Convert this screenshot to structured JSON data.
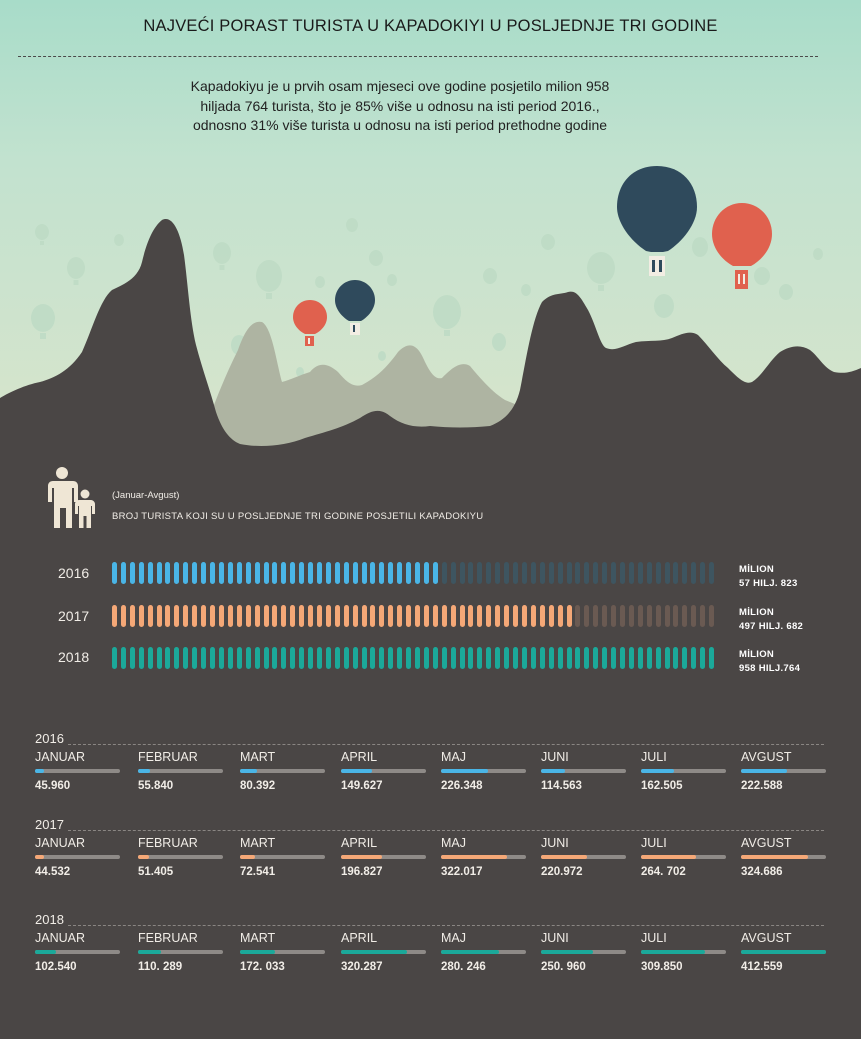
{
  "header": {
    "title": "NAJVEĆI PORAST TURISTA U KAPADOKIYI U POSLJEDNJE TRI GODINE",
    "intro": "Kapadokiyu je u prvih osam mjeseci ove godine posjetilo milion 958 hiljada 764 turista, što je 85% više u odnosu na isti period 2016., odnosno 31% više turista u odnosu na isti period prethodne godine"
  },
  "summary": {
    "period": "(Januar-Avgust)",
    "subtitle": "BROJ TURISTA KOJI SU U POSLJEDNJE TRI GODINE POSJETILI KAPADOKIYU",
    "icon": "family-icon"
  },
  "colors": {
    "y2016": "#4ab5e6",
    "y2017": "#f5a877",
    "y2018": "#1ba99a",
    "dark_bg": "#4a4645",
    "balloon_navy": "#2f4a5c",
    "balloon_red": "#e0614e"
  },
  "chart_data": [
    {
      "type": "bar",
      "title": "BROJ TURISTA KOJI SU U POSLJEDNJE TRI GODINE POSJETILI KAPADOKIYU",
      "categories": [
        "2016",
        "2017",
        "2018"
      ],
      "values": [
        1057823,
        1497682,
        1958764
      ],
      "max": 1958764,
      "value_labels": [
        {
          "line1": "MİLION",
          "line2": "57 HILJ. 823"
        },
        {
          "line1": "MİLION",
          "line2": "497 HILJ. 682"
        },
        {
          "line1": "MİLION",
          "line2": "958 HILJ.764"
        }
      ]
    },
    {
      "type": "bar",
      "categories": [
        "JANUAR",
        "FEBRUAR",
        "MART",
        "APRIL",
        "MAJ",
        "JUNI",
        "JULI",
        "AVGUST"
      ],
      "series": [
        {
          "name": "2016",
          "values": [
            45960,
            55840,
            80392,
            149627,
            226348,
            114563,
            162505,
            222588
          ],
          "labels": [
            "45.960",
            "55.840",
            "80.392",
            "149.627",
            "226.348",
            "114.563",
            "162.505",
            "222.588"
          ]
        },
        {
          "name": "2017",
          "values": [
            44532,
            51405,
            72541,
            196827,
            322017,
            220972,
            264702,
            324686
          ],
          "labels": [
            "44.532",
            "51.405",
            "72.541",
            "196.827",
            "322.017",
            "220.972",
            "264. 702",
            "324.686"
          ]
        },
        {
          "name": "2018",
          "values": [
            102540,
            110289,
            172033,
            320287,
            280246,
            250960,
            309850,
            412559
          ],
          "labels": [
            "102.540",
            "110. 289",
            "172. 033",
            "320.287",
            "280. 246",
            "250. 960",
            "309.850",
            "412.559"
          ]
        }
      ],
      "max": 412559
    }
  ]
}
